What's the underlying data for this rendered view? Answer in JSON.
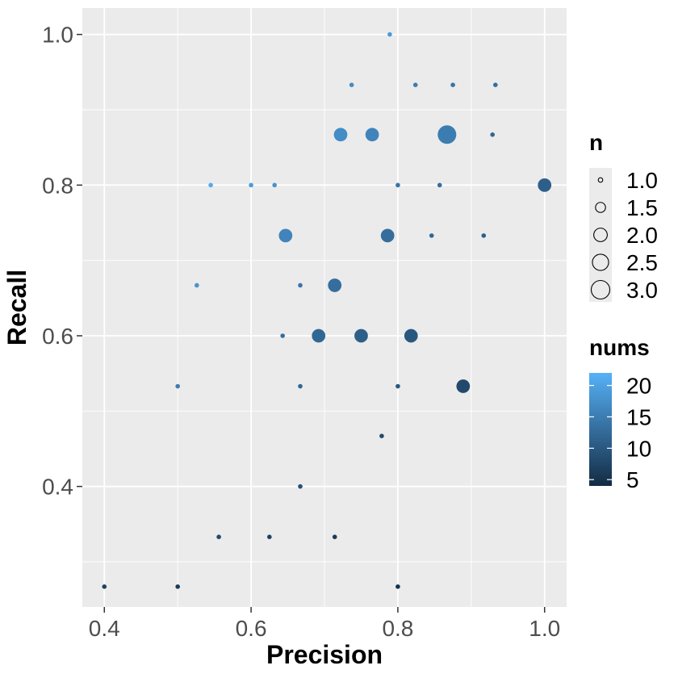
{
  "chart_data": {
    "type": "scatter",
    "xlabel": "Precision",
    "ylabel": "Recall",
    "xlim": [
      0.37,
      1.03
    ],
    "ylim": [
      0.24,
      1.035
    ],
    "x_ticks": [
      0.4,
      0.6,
      0.8,
      1.0
    ],
    "y_ticks": [
      0.4,
      0.6,
      0.8,
      1.0
    ],
    "x_tick_labels": [
      "0.4",
      "0.6",
      "0.8",
      "1.0"
    ],
    "y_tick_labels": [
      "0.4",
      "0.6",
      "0.8",
      "1.0"
    ],
    "grid": true,
    "size_legend": {
      "title": "n",
      "values": [
        1.0,
        1.5,
        2.0,
        2.5,
        3.0
      ],
      "labels": [
        "1.0",
        "1.5",
        "2.0",
        "2.5",
        "3.0"
      ]
    },
    "color_legend": {
      "title": "nums",
      "range": [
        4,
        22
      ],
      "ticks": [
        5,
        10,
        15,
        20
      ],
      "tick_labels": [
        "5",
        "10",
        "15",
        "20"
      ],
      "low_color": "#132B43",
      "high_color": "#56B1F7"
    },
    "points": [
      {
        "x": 0.789,
        "y": 1.0,
        "n": 1,
        "nums": 19
      },
      {
        "x": 0.737,
        "y": 0.933,
        "n": 1,
        "nums": 17
      },
      {
        "x": 0.824,
        "y": 0.933,
        "n": 1,
        "nums": 15
      },
      {
        "x": 0.875,
        "y": 0.933,
        "n": 1,
        "nums": 14
      },
      {
        "x": 0.933,
        "y": 0.933,
        "n": 1,
        "nums": 13
      },
      {
        "x": 0.722,
        "y": 0.867,
        "n": 2,
        "nums": 17
      },
      {
        "x": 0.765,
        "y": 0.867,
        "n": 2,
        "nums": 16
      },
      {
        "x": 0.867,
        "y": 0.867,
        "n": 3,
        "nums": 15
      },
      {
        "x": 0.929,
        "y": 0.867,
        "n": 1,
        "nums": 12
      },
      {
        "x": 0.545,
        "y": 0.8,
        "n": 1,
        "nums": 21
      },
      {
        "x": 0.6,
        "y": 0.8,
        "n": 1,
        "nums": 19
      },
      {
        "x": 0.632,
        "y": 0.8,
        "n": 1,
        "nums": 18
      },
      {
        "x": 0.8,
        "y": 0.8,
        "n": 1,
        "nums": 14
      },
      {
        "x": 0.857,
        "y": 0.8,
        "n": 1,
        "nums": 13
      },
      {
        "x": 1.0,
        "y": 0.8,
        "n": 2,
        "nums": 11
      },
      {
        "x": 0.647,
        "y": 0.733,
        "n": 2,
        "nums": 16
      },
      {
        "x": 0.786,
        "y": 0.733,
        "n": 2,
        "nums": 13
      },
      {
        "x": 0.846,
        "y": 0.733,
        "n": 1,
        "nums": 12
      },
      {
        "x": 0.917,
        "y": 0.733,
        "n": 1,
        "nums": 11
      },
      {
        "x": 0.526,
        "y": 0.667,
        "n": 1,
        "nums": 18
      },
      {
        "x": 0.667,
        "y": 0.667,
        "n": 1,
        "nums": 14
      },
      {
        "x": 0.714,
        "y": 0.667,
        "n": 2,
        "nums": 13
      },
      {
        "x": 0.643,
        "y": 0.6,
        "n": 1,
        "nums": 13
      },
      {
        "x": 0.692,
        "y": 0.6,
        "n": 2,
        "nums": 12
      },
      {
        "x": 0.75,
        "y": 0.6,
        "n": 2,
        "nums": 11
      },
      {
        "x": 0.818,
        "y": 0.6,
        "n": 2,
        "nums": 10
      },
      {
        "x": 0.5,
        "y": 0.533,
        "n": 1,
        "nums": 15
      },
      {
        "x": 0.667,
        "y": 0.533,
        "n": 1,
        "nums": 12
      },
      {
        "x": 0.8,
        "y": 0.533,
        "n": 1,
        "nums": 10
      },
      {
        "x": 0.889,
        "y": 0.533,
        "n": 2,
        "nums": 8
      },
      {
        "x": 0.778,
        "y": 0.467,
        "n": 1,
        "nums": 8
      },
      {
        "x": 0.667,
        "y": 0.4,
        "n": 1,
        "nums": 9
      },
      {
        "x": 0.556,
        "y": 0.333,
        "n": 1,
        "nums": 8
      },
      {
        "x": 0.625,
        "y": 0.333,
        "n": 1,
        "nums": 7
      },
      {
        "x": 0.714,
        "y": 0.333,
        "n": 1,
        "nums": 6
      },
      {
        "x": 0.4,
        "y": 0.267,
        "n": 1,
        "nums": 7
      },
      {
        "x": 0.5,
        "y": 0.267,
        "n": 1,
        "nums": 6
      },
      {
        "x": 0.8,
        "y": 0.267,
        "n": 1,
        "nums": 5
      }
    ]
  }
}
